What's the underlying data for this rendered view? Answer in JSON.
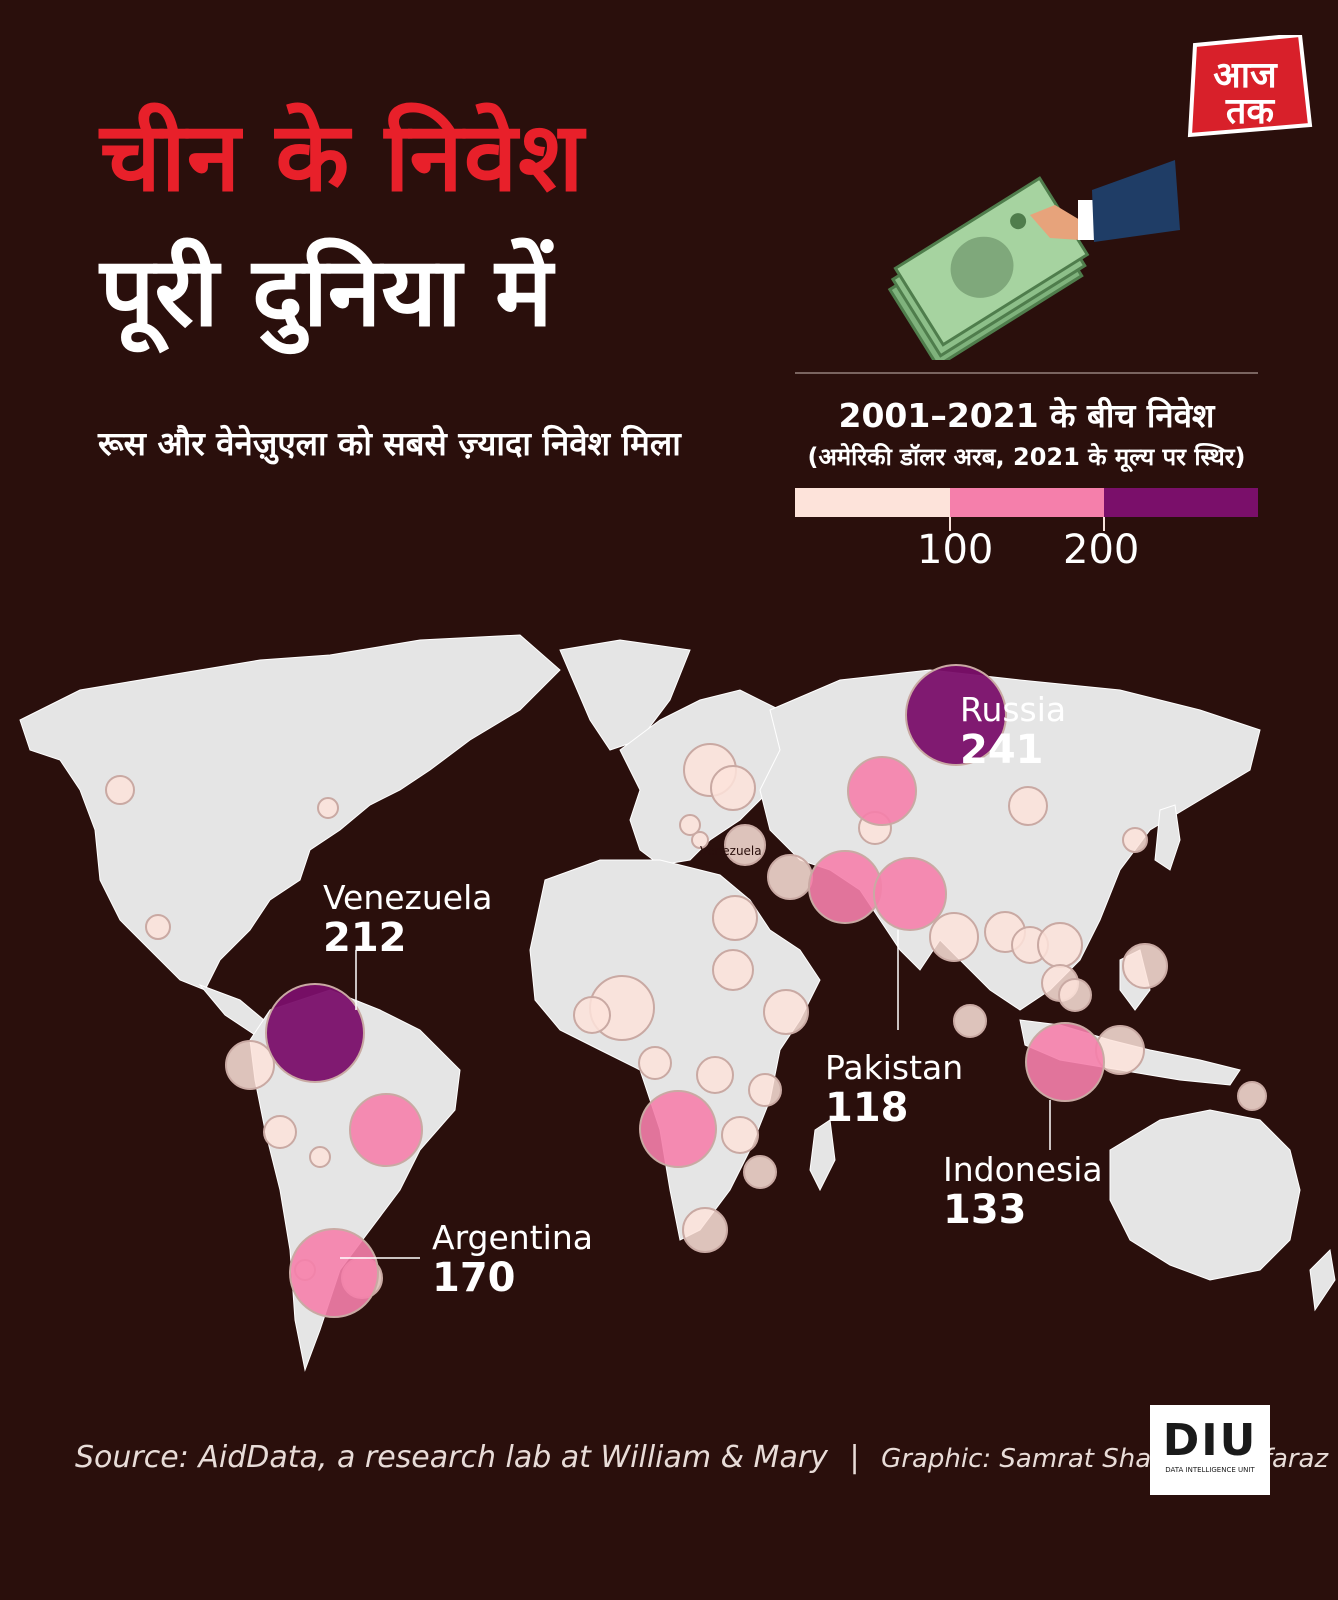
{
  "header": {
    "title_line1": "चीन के निवेश",
    "title_line2": "पूरी दुनिया में",
    "subtitle": "रूस और वेनेज़ुएला को सबसे ज़्यादा निवेश मिला",
    "brand_logo_text": "आज तक"
  },
  "legend": {
    "title": "2001–2021 के बीच निवेश",
    "subtitle": "(अमेरिकी डॉलर अरब, 2021 के मूल्य पर स्थिर)",
    "bins": [
      {
        "from": 0,
        "to": 100,
        "color": "#fde3da"
      },
      {
        "from": 100,
        "to": 200,
        "color": "#f57fab"
      },
      {
        "from": 200,
        "to": 300,
        "color": "#7a0f6a"
      }
    ],
    "tick_labels": [
      "100",
      "200"
    ]
  },
  "map": {
    "land_color": "#e5e5e5",
    "border_color": "#ffffff",
    "stray_label": "Venezuela",
    "labelled_countries": [
      {
        "name": "Russia",
        "value": "241"
      },
      {
        "name": "Venezuela",
        "value": "212"
      },
      {
        "name": "Pakistan",
        "value": "118"
      },
      {
        "name": "Indonesia",
        "value": "133"
      },
      {
        "name": "Argentina",
        "value": "170"
      }
    ]
  },
  "footer": {
    "source": "Source: AidData, a research lab at William & Mary",
    "separator": "|",
    "credit": "Graphic: Samrat Sharma, Sarfaraz",
    "diu_logo_text": "DIU",
    "diu_logo_sub": "DATA INTELLIGENCE UNIT"
  }
}
